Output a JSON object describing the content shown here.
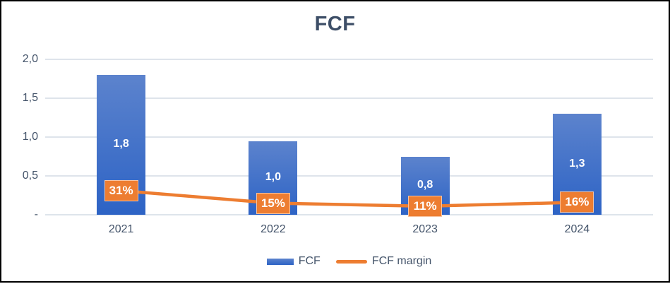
{
  "chart_data": {
    "type": "combo-bar-line",
    "title": "FCF",
    "categories": [
      "2021",
      "2022",
      "2023",
      "2024"
    ],
    "series": [
      {
        "name": "FCF",
        "type": "bar",
        "values": [
          1.8,
          0.95,
          0.75,
          1.3
        ],
        "data_labels": [
          "1,8",
          "1,0",
          "0,8",
          "1,3"
        ],
        "label_position": "inside-center"
      },
      {
        "name": "FCF margin",
        "type": "line",
        "values_pct": [
          31,
          15,
          11,
          16
        ],
        "data_labels": [
          "31%",
          "15%",
          "11%",
          "16%"
        ],
        "secondary_axis_max_pct": 200
      }
    ],
    "y_axis": {
      "min": 0,
      "max": 2,
      "tick_values": [
        2.0,
        1.5,
        1.0,
        0.5,
        0
      ],
      "tick_labels": [
        "2,0",
        "1,5",
        "1,0",
        "0,5",
        "-"
      ]
    },
    "grid": true,
    "legend_position": "bottom",
    "legend": [
      {
        "label": "FCF",
        "swatch": "bar"
      },
      {
        "label": "FCF margin",
        "swatch": "line"
      }
    ]
  },
  "colors": {
    "background": "#FFFFFF",
    "frame_border": "#000000",
    "title_text": "#3D4E67",
    "axis_text": "#44546A",
    "gridline": "#DEE4EB",
    "bar_gradient_top": "#5C83CD",
    "bar_gradient_bottom": "#2D63C5",
    "line": "#ED7D31",
    "badge_bg": "#ED7D31",
    "badge_text": "#FFFFFF",
    "bar_label_text": "#FFFFFF"
  }
}
